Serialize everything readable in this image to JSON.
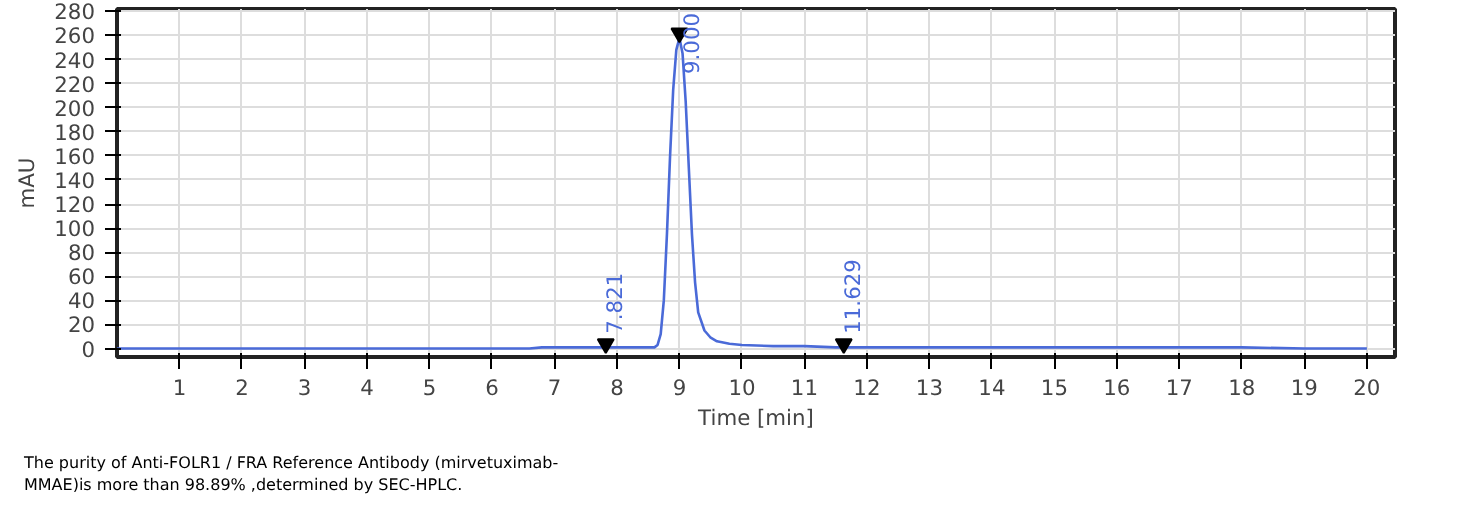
{
  "chart_data": {
    "type": "line",
    "xlabel": "Time [min]",
    "ylabel": "mAU",
    "xlim": [
      0,
      20.45
    ],
    "ylim": [
      -7,
      282
    ],
    "xticks": [
      1,
      2,
      3,
      4,
      5,
      6,
      7,
      8,
      9,
      10,
      11,
      12,
      13,
      14,
      15,
      16,
      17,
      18,
      19,
      20
    ],
    "yticks": [
      0,
      20,
      40,
      60,
      80,
      100,
      120,
      140,
      160,
      180,
      200,
      220,
      240,
      260,
      280
    ],
    "grid": true,
    "series": [
      {
        "type": "line",
        "color": "#4a6ad8",
        "x": [
          0,
          2,
          4,
          6,
          6.6,
          6.8,
          7.5,
          8.0,
          8.5,
          8.6,
          8.65,
          8.7,
          8.75,
          8.8,
          8.85,
          8.9,
          8.95,
          9.0,
          9.05,
          9.1,
          9.15,
          9.2,
          9.25,
          9.3,
          9.4,
          9.5,
          9.6,
          9.8,
          10.0,
          10.5,
          11.0,
          11.5,
          12,
          13,
          14,
          14.3,
          15,
          16,
          17,
          18,
          19,
          20
        ],
        "values": [
          0,
          0,
          0,
          0,
          0,
          1,
          1,
          1,
          1,
          1,
          3,
          12,
          40,
          95,
          160,
          215,
          248,
          258,
          245,
          205,
          150,
          95,
          55,
          30,
          15,
          9,
          6,
          4,
          3,
          2,
          2,
          1,
          1,
          1,
          1,
          1,
          1,
          1,
          1,
          1,
          0,
          0
        ]
      },
      {
        "type": "scatter",
        "color": "#000000",
        "marker": "triangle",
        "x": [
          7.821,
          9.0,
          11.629
        ],
        "values": [
          4,
          262,
          4
        ]
      }
    ],
    "annotations": [
      {
        "text": "7.821",
        "x": 7.821,
        "y": 4
      },
      {
        "text": "9.000",
        "x": 9.0,
        "y": 262
      },
      {
        "text": "11.629",
        "x": 11.629,
        "y": 4
      },
      "The purity of Anti-FOLR1 / FRA Reference Antibody (mirvetuximab-\nMMAE)is more than 98.89% ,determined by SEC-HPLC."
    ]
  }
}
